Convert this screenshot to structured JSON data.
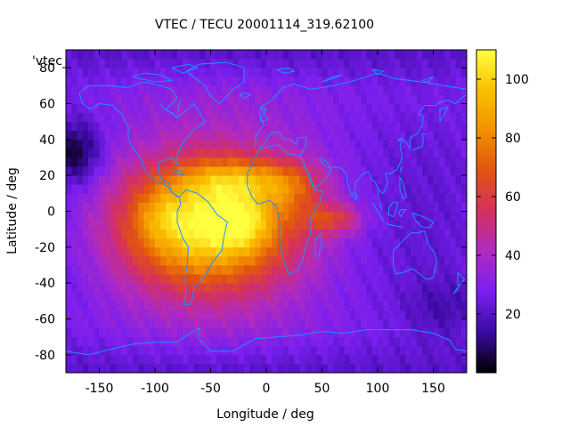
{
  "chart_data": {
    "type": "heatmap",
    "title": "VTEC / TECU 20001114_319.62100",
    "xlabel": "Longitude / deg",
    "ylabel": "Latitude / deg",
    "xlim": [
      -180,
      180
    ],
    "ylim": [
      -90,
      90
    ],
    "x_ticks": [
      -150,
      -100,
      -50,
      0,
      50,
      100,
      150
    ],
    "y_ticks": [
      -80,
      -60,
      -40,
      -20,
      0,
      20,
      40,
      60,
      80
    ],
    "colorbar": {
      "min": 0,
      "max": 110,
      "ticks": [
        20,
        40,
        60,
        80,
        100
      ]
    },
    "legend_label": "'vtec_",
    "background_vtec": 30,
    "features": [
      {
        "name": "main-anomaly",
        "lon": -55,
        "lat": -8,
        "sigma_lon": 55,
        "sigma_lat": 24,
        "amp": 72
      },
      {
        "name": "peak-atlantic",
        "lon": -20,
        "lat": -6,
        "sigma_lon": 18,
        "sigma_lat": 10,
        "amp": 20
      },
      {
        "name": "peak-south-america",
        "lon": -95,
        "lat": -2,
        "sigma_lon": 16,
        "sigma_lat": 10,
        "amp": 10
      },
      {
        "name": "north-atlantic-lobe",
        "lon": -20,
        "lat": 18,
        "sigma_lon": 38,
        "sigma_lat": 8,
        "amp": 28
      },
      {
        "name": "indian-ocean-tongue",
        "lon": 60,
        "lat": -4,
        "sigma_lon": 18,
        "sigma_lat": 6,
        "amp": 28
      },
      {
        "name": "africa-arm",
        "lon": 25,
        "lat": 12,
        "sigma_lon": 18,
        "sigma_lat": 10,
        "amp": 18
      },
      {
        "name": "polar-cap-north",
        "lon": -170,
        "lat": 33,
        "sigma_lon": 15,
        "sigma_lat": 12,
        "amp": -22
      },
      {
        "name": "mid-pacific-dark",
        "lon": 160,
        "lat": -55,
        "sigma_lon": 25,
        "sigma_lat": 12,
        "amp": -10
      }
    ],
    "colors": {
      "stops": [
        "#000000",
        "#3a0aa0",
        "#7a1ff0",
        "#b02ac0",
        "#d43060",
        "#e05410",
        "#f29000",
        "#fbc000",
        "#ffff40"
      ],
      "coastline": "#1e90ff",
      "frame": "#000000"
    }
  }
}
